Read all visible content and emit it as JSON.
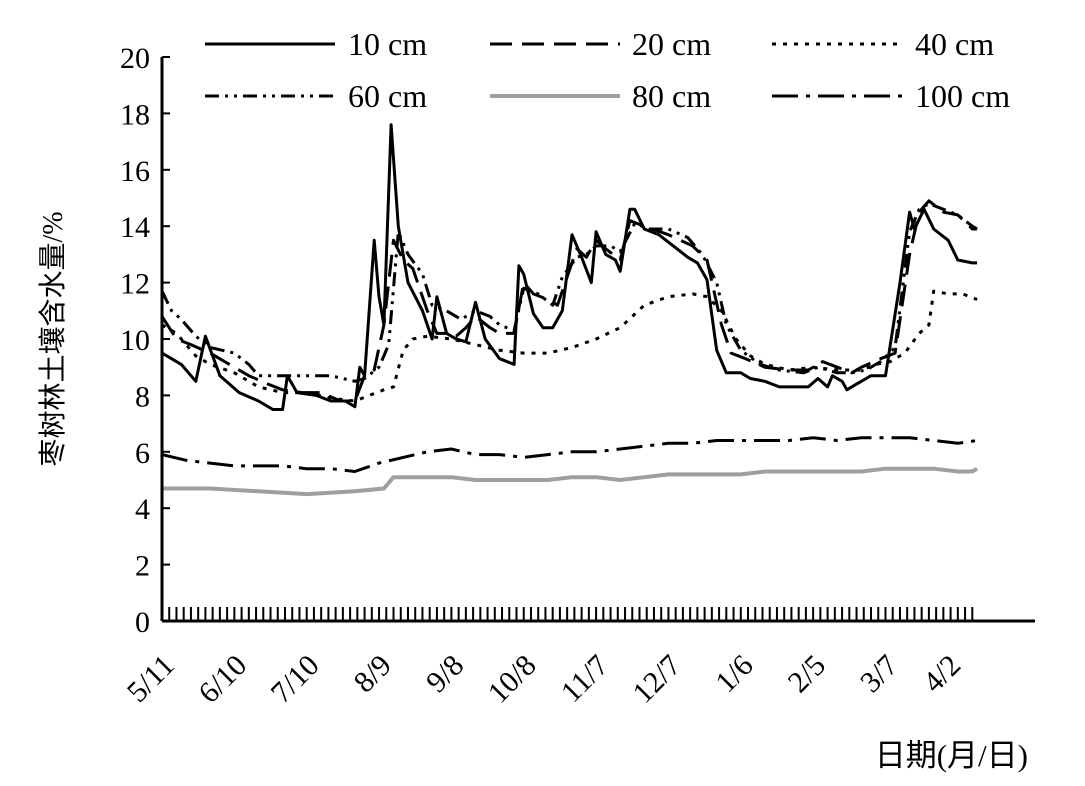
{
  "chart_data": {
    "type": "line",
    "title": "",
    "xlabel": "日期(月/日)",
    "ylabel": "枣树林土壤含水量/%",
    "ylim": [
      0,
      20
    ],
    "yticks": [
      "0",
      "2",
      "4",
      "6",
      "8",
      "10",
      "12",
      "14",
      "16",
      "18",
      "20"
    ],
    "xlim": [
      0,
      362
    ],
    "xticks": [
      {
        "label": "5/11",
        "day": 0
      },
      {
        "label": "6/10",
        "day": 30
      },
      {
        "label": "7/10",
        "day": 60
      },
      {
        "label": "8/9",
        "day": 90
      },
      {
        "label": "9/8",
        "day": 120
      },
      {
        "label": "10/8",
        "day": 150
      },
      {
        "label": "11/7",
        "day": 180
      },
      {
        "label": "12/7",
        "day": 210
      },
      {
        "label": "1/6",
        "day": 240
      },
      {
        "label": "2/5",
        "day": 270
      },
      {
        "label": "3/7",
        "day": 300
      },
      {
        "label": "4/2",
        "day": 326
      }
    ],
    "grid": false,
    "legend_position": "top",
    "series": [
      {
        "name": "10 cm",
        "style": "solid",
        "color": "#000000",
        "points": [
          [
            0,
            9.5
          ],
          [
            8,
            9.1
          ],
          [
            14,
            8.5
          ],
          [
            18,
            10.1
          ],
          [
            24,
            8.7
          ],
          [
            32,
            8.1
          ],
          [
            40,
            7.8
          ],
          [
            46,
            7.5
          ],
          [
            50,
            7.5
          ],
          [
            52,
            8.7
          ],
          [
            56,
            8.1
          ],
          [
            64,
            8
          ],
          [
            70,
            7.8
          ],
          [
            76,
            7.8
          ],
          [
            80,
            7.6
          ],
          [
            82,
            9
          ],
          [
            84,
            8.7
          ],
          [
            88,
            13.5
          ],
          [
            90,
            11.5
          ],
          [
            92,
            10.5
          ],
          [
            95,
            17.6
          ],
          [
            98,
            14
          ],
          [
            102,
            12
          ],
          [
            108,
            11
          ],
          [
            112,
            10
          ],
          [
            114,
            11.5
          ],
          [
            118,
            10.2
          ],
          [
            122,
            10
          ],
          [
            126,
            9.9
          ],
          [
            130,
            11.3
          ],
          [
            134,
            10
          ],
          [
            140,
            9.3
          ],
          [
            146,
            9.1
          ],
          [
            148,
            12.6
          ],
          [
            150,
            12.3
          ],
          [
            154,
            10.9
          ],
          [
            158,
            10.4
          ],
          [
            162,
            10.4
          ],
          [
            166,
            11
          ],
          [
            170,
            13.7
          ],
          [
            174,
            12.9
          ],
          [
            178,
            12
          ],
          [
            180,
            13.8
          ],
          [
            184,
            13
          ],
          [
            188,
            12.8
          ],
          [
            190,
            12.4
          ],
          [
            194,
            14.6
          ],
          [
            196,
            14.6
          ],
          [
            200,
            13.9
          ],
          [
            206,
            13.7
          ],
          [
            212,
            13.3
          ],
          [
            218,
            12.9
          ],
          [
            222,
            12.7
          ],
          [
            226,
            12.1
          ],
          [
            230,
            9.6
          ],
          [
            234,
            8.8
          ],
          [
            240,
            8.8
          ],
          [
            244,
            8.6
          ],
          [
            250,
            8.5
          ],
          [
            256,
            8.3
          ],
          [
            262,
            8.3
          ],
          [
            268,
            8.3
          ],
          [
            272,
            8.6
          ],
          [
            276,
            8.3
          ],
          [
            278,
            8.7
          ],
          [
            282,
            8.5
          ],
          [
            284,
            8.2
          ],
          [
            288,
            8.4
          ],
          [
            294,
            8.7
          ],
          [
            300,
            8.7
          ],
          [
            306,
            12
          ],
          [
            310,
            14.5
          ],
          [
            312,
            13.9
          ],
          [
            316,
            14.6
          ],
          [
            320,
            13.9
          ],
          [
            326,
            13.5
          ],
          [
            330,
            12.8
          ],
          [
            336,
            12.7
          ],
          [
            338,
            12.7
          ]
        ]
      },
      {
        "name": "20 cm",
        "style": "long-dash",
        "color": "#000000",
        "points": [
          [
            0,
            10.8
          ],
          [
            6,
            10
          ],
          [
            12,
            9.8
          ],
          [
            20,
            9.5
          ],
          [
            28,
            9.1
          ],
          [
            36,
            8.7
          ],
          [
            44,
            8.4
          ],
          [
            50,
            8.2
          ],
          [
            58,
            8.1
          ],
          [
            66,
            8.1
          ],
          [
            74,
            7.8
          ],
          [
            80,
            7.8
          ],
          [
            84,
            8.7
          ],
          [
            88,
            8.9
          ],
          [
            92,
            10.5
          ],
          [
            96,
            13.5
          ],
          [
            100,
            12.8
          ],
          [
            104,
            12.5
          ],
          [
            110,
            11
          ],
          [
            114,
            10.2
          ],
          [
            118,
            10.2
          ],
          [
            122,
            10.1
          ],
          [
            126,
            10.4
          ],
          [
            130,
            10.8
          ],
          [
            136,
            10.4
          ],
          [
            140,
            10.2
          ],
          [
            146,
            10.2
          ],
          [
            150,
            12
          ],
          [
            154,
            11.6
          ],
          [
            160,
            11.4
          ],
          [
            164,
            11.2
          ],
          [
            168,
            12.2
          ],
          [
            172,
            13.2
          ],
          [
            176,
            12.9
          ],
          [
            180,
            13.5
          ],
          [
            184,
            13.2
          ],
          [
            190,
            12.8
          ],
          [
            194,
            14.2
          ],
          [
            200,
            14
          ],
          [
            210,
            13.7
          ],
          [
            220,
            13.3
          ],
          [
            226,
            12.8
          ],
          [
            232,
            10.5
          ],
          [
            236,
            9.5
          ],
          [
            242,
            9.3
          ],
          [
            250,
            9
          ],
          [
            260,
            8.9
          ],
          [
            268,
            8.9
          ],
          [
            274,
            9.2
          ],
          [
            280,
            9
          ],
          [
            286,
            8.8
          ],
          [
            290,
            9
          ],
          [
            298,
            9.3
          ],
          [
            304,
            9.5
          ],
          [
            310,
            13
          ],
          [
            314,
            14.5
          ],
          [
            318,
            14.9
          ],
          [
            324,
            14.5
          ],
          [
            330,
            14.4
          ],
          [
            336,
            13.9
          ],
          [
            338,
            13.9
          ]
        ]
      },
      {
        "name": "40 cm",
        "style": "dotted",
        "color": "#000000",
        "points": [
          [
            0,
            10.5
          ],
          [
            6,
            10.2
          ],
          [
            14,
            9.4
          ],
          [
            20,
            9.1
          ],
          [
            30,
            8.8
          ],
          [
            40,
            8.3
          ],
          [
            50,
            8.1
          ],
          [
            60,
            8.1
          ],
          [
            70,
            7.9
          ],
          [
            80,
            7.8
          ],
          [
            86,
            8
          ],
          [
            92,
            8.2
          ],
          [
            96,
            8.3
          ],
          [
            100,
            9.6
          ],
          [
            104,
            10
          ],
          [
            110,
            10.1
          ],
          [
            120,
            10
          ],
          [
            130,
            9.8
          ],
          [
            140,
            9.6
          ],
          [
            150,
            9.5
          ],
          [
            160,
            9.5
          ],
          [
            170,
            9.7
          ],
          [
            180,
            10
          ],
          [
            190,
            10.4
          ],
          [
            200,
            11.2
          ],
          [
            210,
            11.5
          ],
          [
            220,
            11.6
          ],
          [
            226,
            11.5
          ],
          [
            232,
            11
          ],
          [
            238,
            10
          ],
          [
            244,
            9.4
          ],
          [
            250,
            9.1
          ],
          [
            260,
            8.9
          ],
          [
            270,
            9
          ],
          [
            280,
            8.9
          ],
          [
            290,
            8.9
          ],
          [
            296,
            9.1
          ],
          [
            302,
            9.2
          ],
          [
            308,
            9.5
          ],
          [
            314,
            10.2
          ],
          [
            318,
            10.5
          ],
          [
            320,
            11.7
          ],
          [
            326,
            11.6
          ],
          [
            332,
            11.6
          ],
          [
            338,
            11.4
          ]
        ]
      },
      {
        "name": "60 cm",
        "style": "dash-dot-dot",
        "color": "#000000",
        "points": [
          [
            0,
            11.7
          ],
          [
            4,
            11
          ],
          [
            8,
            10.7
          ],
          [
            14,
            10.1
          ],
          [
            20,
            9.7
          ],
          [
            30,
            9.5
          ],
          [
            36,
            9.1
          ],
          [
            40,
            8.7
          ],
          [
            50,
            8.7
          ],
          [
            60,
            8.7
          ],
          [
            70,
            8.7
          ],
          [
            80,
            8.5
          ],
          [
            84,
            8.6
          ],
          [
            90,
            9
          ],
          [
            94,
            9.8
          ],
          [
            98,
            13.8
          ],
          [
            102,
            13
          ],
          [
            108,
            12.3
          ],
          [
            112,
            11.2
          ],
          [
            118,
            11
          ],
          [
            124,
            10.7
          ],
          [
            130,
            11
          ],
          [
            136,
            10.8
          ],
          [
            140,
            10.5
          ],
          [
            146,
            10.3
          ],
          [
            150,
            11.8
          ],
          [
            156,
            11.6
          ],
          [
            162,
            11.2
          ],
          [
            166,
            12.2
          ],
          [
            172,
            12.9
          ],
          [
            176,
            13
          ],
          [
            180,
            13.3
          ],
          [
            186,
            13.3
          ],
          [
            190,
            13.1
          ],
          [
            196,
            14.1
          ],
          [
            202,
            13.9
          ],
          [
            210,
            13.9
          ],
          [
            218,
            13.6
          ],
          [
            224,
            13
          ],
          [
            230,
            12
          ],
          [
            234,
            10.5
          ],
          [
            240,
            9.6
          ],
          [
            248,
            9.1
          ],
          [
            256,
            8.9
          ],
          [
            266,
            8.8
          ],
          [
            272,
            9
          ],
          [
            280,
            8.8
          ],
          [
            286,
            8.8
          ],
          [
            292,
            8.9
          ],
          [
            298,
            9.2
          ],
          [
            304,
            9.7
          ],
          [
            310,
            13.8
          ],
          [
            314,
            14.6
          ],
          [
            318,
            14.8
          ],
          [
            324,
            14.6
          ],
          [
            330,
            14.4
          ],
          [
            336,
            14
          ],
          [
            338,
            13.9
          ]
        ]
      },
      {
        "name": "80 cm",
        "style": "solid",
        "color": "#9aa39a",
        "width": 4,
        "points": [
          [
            0,
            4.7
          ],
          [
            20,
            4.7
          ],
          [
            40,
            4.6
          ],
          [
            60,
            4.5
          ],
          [
            80,
            4.6
          ],
          [
            92,
            4.7
          ],
          [
            96,
            5.1
          ],
          [
            100,
            5.1
          ],
          [
            110,
            5.1
          ],
          [
            120,
            5.1
          ],
          [
            130,
            5
          ],
          [
            140,
            5
          ],
          [
            150,
            5
          ],
          [
            160,
            5
          ],
          [
            170,
            5.1
          ],
          [
            180,
            5.1
          ],
          [
            190,
            5
          ],
          [
            200,
            5.1
          ],
          [
            210,
            5.2
          ],
          [
            220,
            5.2
          ],
          [
            230,
            5.2
          ],
          [
            240,
            5.2
          ],
          [
            250,
            5.3
          ],
          [
            260,
            5.3
          ],
          [
            270,
            5.3
          ],
          [
            280,
            5.3
          ],
          [
            290,
            5.3
          ],
          [
            300,
            5.4
          ],
          [
            310,
            5.4
          ],
          [
            320,
            5.4
          ],
          [
            330,
            5.3
          ],
          [
            336,
            5.3
          ],
          [
            338,
            5.4
          ]
        ]
      },
      {
        "name": "100 cm",
        "style": "long-dash-dot",
        "color": "#000000",
        "points": [
          [
            0,
            5.9
          ],
          [
            10,
            5.7
          ],
          [
            20,
            5.6
          ],
          [
            30,
            5.5
          ],
          [
            40,
            5.5
          ],
          [
            50,
            5.5
          ],
          [
            60,
            5.4
          ],
          [
            70,
            5.4
          ],
          [
            80,
            5.3
          ],
          [
            90,
            5.6
          ],
          [
            100,
            5.8
          ],
          [
            110,
            6
          ],
          [
            120,
            6.1
          ],
          [
            130,
            5.9
          ],
          [
            140,
            5.9
          ],
          [
            150,
            5.8
          ],
          [
            160,
            5.9
          ],
          [
            170,
            6
          ],
          [
            180,
            6
          ],
          [
            190,
            6.1
          ],
          [
            200,
            6.2
          ],
          [
            210,
            6.3
          ],
          [
            220,
            6.3
          ],
          [
            230,
            6.4
          ],
          [
            240,
            6.4
          ],
          [
            250,
            6.4
          ],
          [
            260,
            6.4
          ],
          [
            270,
            6.5
          ],
          [
            280,
            6.4
          ],
          [
            290,
            6.5
          ],
          [
            300,
            6.5
          ],
          [
            310,
            6.5
          ],
          [
            320,
            6.4
          ],
          [
            330,
            6.3
          ],
          [
            338,
            6.4
          ]
        ]
      }
    ]
  }
}
